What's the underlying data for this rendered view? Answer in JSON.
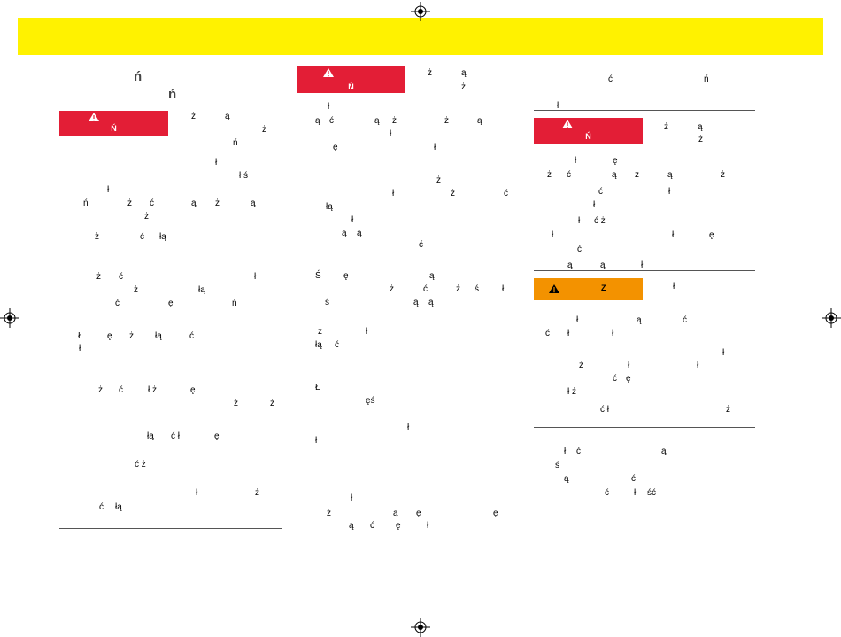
{
  "colors": {
    "band": "#fff200",
    "danger": "#e31e36",
    "caution": "#f39200"
  },
  "headings": {
    "h1": "ń",
    "h2": "ń"
  },
  "danger_label": "Ń",
  "caution_label": "Ż",
  "glyphs": [
    [
      "ż",
      "ą"
    ],
    [
      "ż"
    ],
    [
      "ń"
    ],
    [
      "ł"
    ],
    [
      "ł ś"
    ],
    [
      "ł"
    ],
    [
      "ń",
      "ż",
      "ć",
      "ą",
      "ż",
      "ą"
    ],
    [
      "ż"
    ],
    [
      "ż",
      "ć",
      "łą"
    ],
    [
      "ż",
      "ć",
      "ł"
    ],
    [
      "ż",
      "łą"
    ],
    [
      "ć",
      "ę",
      "ń"
    ],
    [
      "Ł",
      "ę",
      "ż",
      "łą",
      "ć"
    ],
    [
      "ł"
    ],
    [
      "ż",
      "ć",
      "ł ż",
      "ę"
    ],
    [
      "ż",
      "ż"
    ],
    [
      "łą",
      "ć ł",
      "ę"
    ],
    [
      "ć ż"
    ],
    [
      "ł",
      "ż"
    ],
    [
      "ć",
      "łą"
    ],
    [
      "ż",
      "ą"
    ],
    [
      "ż"
    ],
    [
      "ł"
    ],
    [
      "ą",
      "ć",
      "ą",
      "ż",
      "ż",
      "ą"
    ],
    [
      "ł"
    ],
    [
      "ę",
      "ł"
    ],
    [
      "ż"
    ],
    [
      "ł",
      "ż",
      "ć"
    ],
    [
      "łą"
    ],
    [
      "ł"
    ],
    [
      "ą",
      "ą"
    ],
    [
      "ć"
    ],
    [
      "Ś",
      "ę",
      "ą"
    ],
    [
      "ż",
      "ć",
      "ż",
      "ś",
      "ł"
    ],
    [
      "ś",
      "ą",
      "ą"
    ],
    [
      "ż",
      "ł"
    ],
    [
      "łą",
      "ć"
    ],
    [
      "Ł"
    ],
    [
      "ęś"
    ],
    [
      "ł"
    ],
    [
      "ł"
    ],
    [
      "ł"
    ],
    [
      "ż",
      "ą",
      "ę",
      "ę"
    ],
    [
      "ą",
      "ć",
      "ę",
      "ł"
    ],
    [
      "ć",
      "ń"
    ],
    [
      "ł"
    ],
    [
      "ż",
      "ą"
    ],
    [
      "ż"
    ],
    [
      "ł",
      "ę"
    ],
    [
      "ż",
      "ć",
      "ą",
      "ż",
      "ą",
      "ż"
    ],
    [
      "ć",
      "ł"
    ],
    [
      "ł"
    ],
    [
      "ł",
      "ć ż"
    ],
    [
      "ł",
      "ł",
      "ę"
    ],
    [
      "ć"
    ],
    [
      "ą",
      "ą",
      "ł"
    ],
    [
      "ł"
    ],
    [
      "ł",
      "ą",
      "ć"
    ],
    [
      "ć",
      "ł",
      "ł"
    ],
    [
      "ł"
    ],
    [
      "ż",
      "ł",
      "ł"
    ],
    [
      "ć",
      "ę"
    ],
    [
      "ł ż"
    ],
    [
      "ć ł",
      "ż"
    ],
    [
      "ł",
      "ć",
      "ą"
    ],
    [
      "ś"
    ],
    [
      "ą",
      "ć"
    ],
    [
      "ć",
      "ł",
      "ść"
    ]
  ]
}
